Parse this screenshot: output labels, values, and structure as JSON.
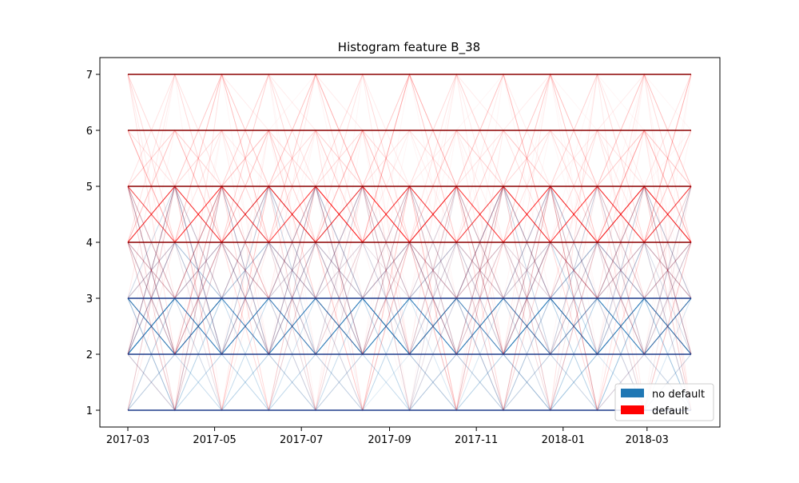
{
  "chart_data": {
    "type": "line",
    "title": "Histogram feature B_38",
    "xlabel": "",
    "ylabel": "",
    "x_ticks": [
      "2017-03",
      "2017-05",
      "2017-07",
      "2017-09",
      "2017-11",
      "2018-01",
      "2018-03"
    ],
    "y_ticks": [
      1,
      2,
      3,
      4,
      5,
      6,
      7
    ],
    "xlim": [
      "2017-03-01",
      "2018-04-01"
    ],
    "ylim": [
      1,
      7
    ],
    "grid": false,
    "legend_position": "lower-right",
    "legend": [
      {
        "label": "no default",
        "color": "#1f77b4"
      },
      {
        "label": "default",
        "color": "#ff0000"
      }
    ],
    "series": [
      {
        "name": "no default",
        "color": "#1f77b4",
        "level_band": [
          1,
          5
        ],
        "concentrated_levels": [
          2,
          3
        ]
      },
      {
        "name": "default",
        "color": "#ff0000",
        "level_band": [
          1,
          7
        ],
        "concentrated_levels": [
          4,
          5
        ]
      }
    ],
    "horizontal_levels": [
      {
        "y": 1,
        "color": "#1f3b8a"
      },
      {
        "y": 2,
        "color": "#1f3b8a"
      },
      {
        "y": 3,
        "color": "#1f3b8a"
      },
      {
        "y": 4,
        "color": "#8b0000"
      },
      {
        "y": 5,
        "color": "#8b0000"
      },
      {
        "y": 6,
        "color": "#8b0000"
      },
      {
        "y": 7,
        "color": "#8b0000"
      }
    ]
  }
}
